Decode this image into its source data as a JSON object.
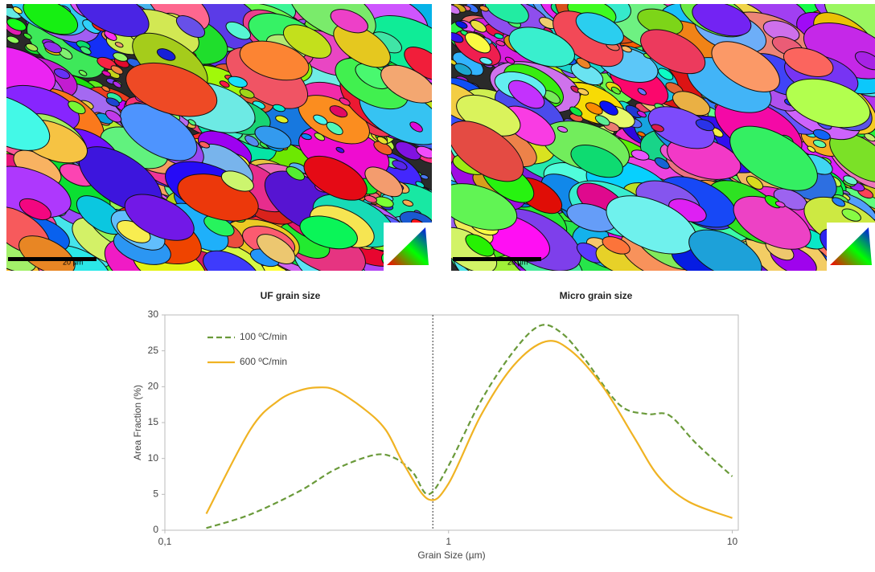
{
  "maps": [
    {
      "scale_bar": "20 µm"
    },
    {
      "scale_bar": "20 µm"
    }
  ],
  "panel_labels": [
    "UF grain size",
    "Micro grain size"
  ],
  "chart_data": {
    "type": "line",
    "x_label": "Grain Size (µm)",
    "y_label": "Area Fraction (%)",
    "xscale": "log",
    "xlim": [
      0.1,
      10.5
    ],
    "xticks": [
      {
        "value": 0.1,
        "label": "0,1"
      },
      1,
      10
    ],
    "ylim": [
      0,
      30
    ],
    "yticks": [
      0,
      5,
      10,
      15,
      20,
      25,
      30
    ],
    "divider_x": 0.88,
    "legend": "upper left",
    "series": [
      {
        "name": "100 ºC/min",
        "color": "#6a9a3a",
        "dash": true,
        "x": [
          0.14,
          0.2,
          0.3,
          0.4,
          0.55,
          0.65,
          0.75,
          0.85,
          1,
          1.3,
          1.7,
          2.1,
          2.5,
          3,
          4,
          5,
          6,
          7.5,
          10
        ],
        "values": [
          0.3,
          2.2,
          5.5,
          8.5,
          10.5,
          10,
          8,
          5,
          9,
          18,
          25,
          28.5,
          27.5,
          24,
          17.5,
          16.2,
          16,
          12,
          7.5
        ]
      },
      {
        "name": "600 ºC/min",
        "color": "#f0b323",
        "dash": false,
        "x": [
          0.14,
          0.2,
          0.25,
          0.3,
          0.35,
          0.4,
          0.5,
          0.6,
          0.7,
          0.85,
          1,
          1.3,
          1.7,
          2.2,
          2.7,
          3.5,
          4.5,
          5.5,
          7,
          10
        ],
        "values": [
          2.3,
          14,
          18,
          19.5,
          19.9,
          19.5,
          17,
          14,
          9,
          4.3,
          6.5,
          16,
          23,
          26.3,
          25,
          20,
          13,
          7.5,
          4,
          1.7
        ]
      }
    ]
  }
}
